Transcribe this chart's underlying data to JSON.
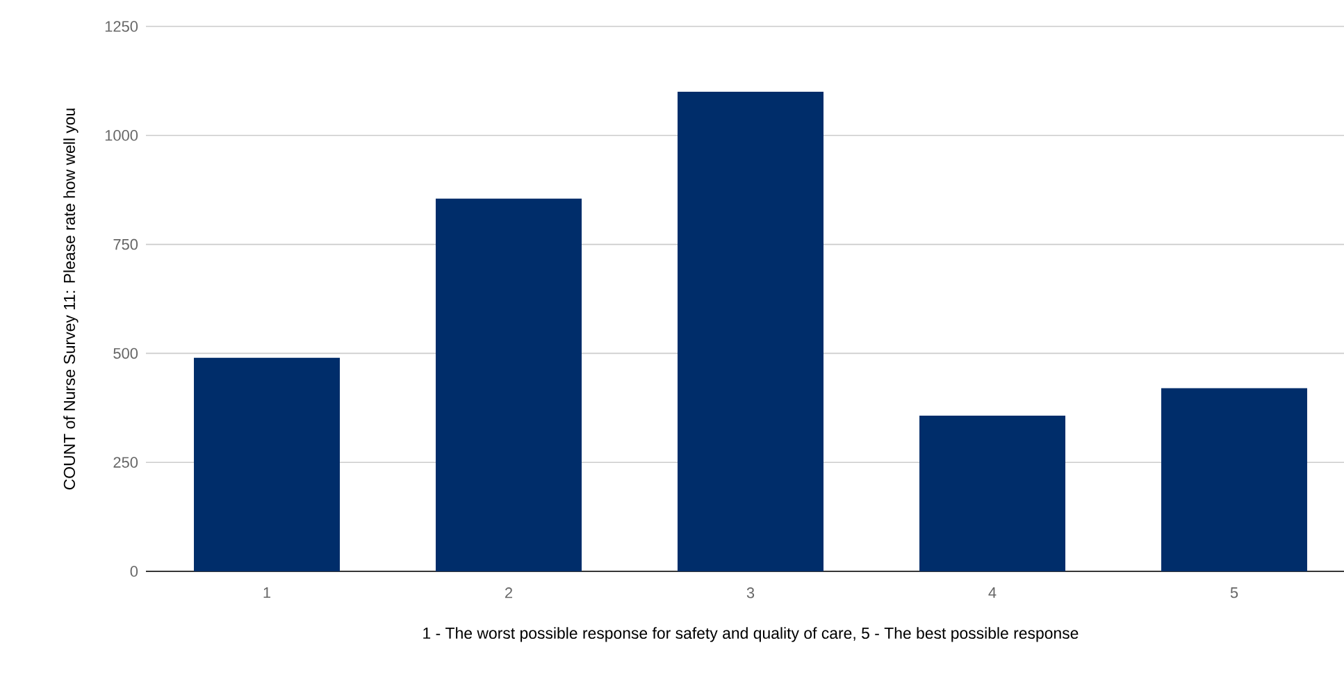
{
  "chart_data": {
    "type": "bar",
    "xlabel": "1 - The worst possible response for safety and quality of care, 5 - The best possible response",
    "ylabel": "COUNT of Nurse Survey 11: Please rate how well you",
    "categories": [
      "1",
      "2",
      "3",
      "4",
      "5"
    ],
    "values": [
      490,
      855,
      1100,
      357,
      420
    ],
    "color": "#002d6a",
    "ylim": [
      0,
      1250
    ],
    "yticks": [
      0,
      250,
      500,
      750,
      1000,
      1250
    ],
    "grid": "y"
  }
}
